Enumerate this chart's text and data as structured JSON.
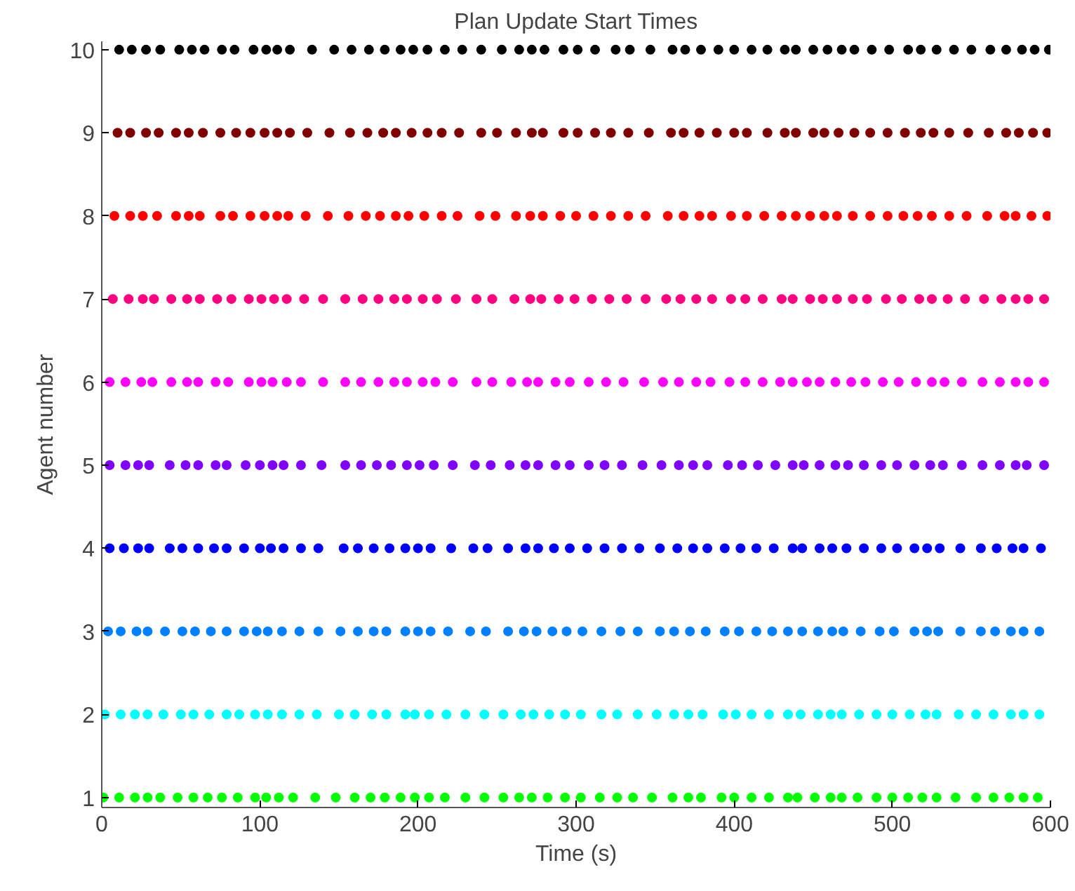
{
  "chart_data": {
    "type": "scatter",
    "title": "Plan Update Start Times",
    "xlabel": "Time (s)",
    "ylabel": "Agent number",
    "xlim": [
      0,
      600
    ],
    "ylim": [
      0.88,
      10.1
    ],
    "xticks": [
      0,
      100,
      200,
      300,
      400,
      500,
      600
    ],
    "yticks": [
      1,
      2,
      3,
      4,
      5,
      6,
      7,
      8,
      9,
      10
    ],
    "grid": false,
    "marker": "circle",
    "series": [
      {
        "color": "#00ff00",
        "x": [
          1,
          11,
          21,
          29,
          37,
          48,
          58,
          67,
          76,
          86,
          97,
          104,
          112,
          121,
          135,
          148,
          160,
          170,
          179,
          189,
          198,
          207,
          217,
          230,
          242,
          254,
          264,
          272,
          282,
          293,
          303,
          315,
          326,
          336,
          348,
          361,
          371,
          379,
          392,
          400,
          411,
          422,
          434,
          440,
          451,
          461,
          468,
          478,
          490,
          500,
          510,
          519,
          528,
          540,
          553,
          564,
          574,
          583,
          592
        ],
        "values": [
          1,
          1,
          1,
          1,
          1,
          1,
          1,
          1,
          1,
          1,
          1,
          1,
          1,
          1,
          1,
          1,
          1,
          1,
          1,
          1,
          1,
          1,
          1,
          1,
          1,
          1,
          1,
          1,
          1,
          1,
          1,
          1,
          1,
          1,
          1,
          1,
          1,
          1,
          1,
          1,
          1,
          1,
          1,
          1,
          1,
          1,
          1,
          1,
          1,
          1,
          1,
          1,
          1,
          1,
          1,
          1,
          1,
          1,
          1
        ]
      },
      {
        "color": "#00ffff",
        "x": [
          2,
          12,
          21,
          29,
          39,
          50,
          58,
          68,
          79,
          87,
          97,
          105,
          114,
          125,
          136,
          150,
          160,
          171,
          180,
          192,
          198,
          207,
          218,
          230,
          242,
          254,
          265,
          273,
          283,
          293,
          303,
          316,
          326,
          339,
          351,
          362,
          371,
          380,
          393,
          401,
          411,
          422,
          434,
          442,
          453,
          461,
          468,
          479,
          490,
          500,
          511,
          521,
          528,
          542,
          553,
          564,
          575,
          583,
          593
        ],
        "values": [
          2,
          2,
          2,
          2,
          2,
          2,
          2,
          2,
          2,
          2,
          2,
          2,
          2,
          2,
          2,
          2,
          2,
          2,
          2,
          2,
          2,
          2,
          2,
          2,
          2,
          2,
          2,
          2,
          2,
          2,
          2,
          2,
          2,
          2,
          2,
          2,
          2,
          2,
          2,
          2,
          2,
          2,
          2,
          2,
          2,
          2,
          2,
          2,
          2,
          2,
          2,
          2,
          2,
          2,
          2,
          2,
          2,
          2,
          2
        ]
      },
      {
        "color": "#0080ff",
        "x": [
          4,
          12,
          22,
          29,
          40,
          51,
          59,
          69,
          79,
          90,
          98,
          105,
          114,
          125,
          137,
          151,
          162,
          172,
          180,
          192,
          200,
          208,
          219,
          233,
          243,
          257,
          267,
          275,
          285,
          294,
          304,
          316,
          328,
          339,
          353,
          362,
          372,
          382,
          394,
          403,
          414,
          424,
          434,
          443,
          453,
          462,
          469,
          480,
          492,
          501,
          514,
          522,
          529,
          543,
          556,
          565,
          575,
          583,
          593
        ],
        "values": [
          3,
          3,
          3,
          3,
          3,
          3,
          3,
          3,
          3,
          3,
          3,
          3,
          3,
          3,
          3,
          3,
          3,
          3,
          3,
          3,
          3,
          3,
          3,
          3,
          3,
          3,
          3,
          3,
          3,
          3,
          3,
          3,
          3,
          3,
          3,
          3,
          3,
          3,
          3,
          3,
          3,
          3,
          3,
          3,
          3,
          3,
          3,
          3,
          3,
          3,
          3,
          3,
          3,
          3,
          3,
          3,
          3,
          3,
          3
        ]
      },
      {
        "color": "#0000ff",
        "x": [
          5,
          14,
          23,
          30,
          43,
          51,
          61,
          71,
          79,
          90,
          100,
          107,
          115,
          126,
          137,
          153,
          162,
          172,
          182,
          192,
          200,
          208,
          221,
          235,
          244,
          257,
          268,
          276,
          286,
          296,
          307,
          318,
          329,
          340,
          353,
          364,
          374,
          383,
          394,
          404,
          414,
          425,
          437,
          443,
          454,
          462,
          471,
          482,
          493,
          503,
          514,
          522,
          530,
          543,
          556,
          566,
          576,
          583,
          594
        ],
        "values": [
          4,
          4,
          4,
          4,
          4,
          4,
          4,
          4,
          4,
          4,
          4,
          4,
          4,
          4,
          4,
          4,
          4,
          4,
          4,
          4,
          4,
          4,
          4,
          4,
          4,
          4,
          4,
          4,
          4,
          4,
          4,
          4,
          4,
          4,
          4,
          4,
          4,
          4,
          4,
          4,
          4,
          4,
          4,
          4,
          4,
          4,
          4,
          4,
          4,
          4,
          4,
          4,
          4,
          4,
          4,
          4,
          4,
          4,
          4
        ]
      },
      {
        "color": "#8000ff",
        "x": [
          5,
          15,
          23,
          30,
          43,
          53,
          61,
          72,
          79,
          91,
          100,
          108,
          115,
          126,
          139,
          154,
          164,
          174,
          183,
          193,
          201,
          210,
          222,
          236,
          246,
          258,
          268,
          276,
          287,
          296,
          308,
          318,
          329,
          342,
          354,
          365,
          374,
          383,
          396,
          405,
          415,
          426,
          437,
          444,
          454,
          464,
          472,
          482,
          493,
          503,
          514,
          524,
          532,
          544,
          557,
          568,
          578,
          585,
          596
        ],
        "values": [
          5,
          5,
          5,
          5,
          5,
          5,
          5,
          5,
          5,
          5,
          5,
          5,
          5,
          5,
          5,
          5,
          5,
          5,
          5,
          5,
          5,
          5,
          5,
          5,
          5,
          5,
          5,
          5,
          5,
          5,
          5,
          5,
          5,
          5,
          5,
          5,
          5,
          5,
          5,
          5,
          5,
          5,
          5,
          5,
          5,
          5,
          5,
          5,
          5,
          5,
          5,
          5,
          5,
          5,
          5,
          5,
          5,
          5,
          5
        ]
      },
      {
        "color": "#ff00ff",
        "x": [
          5,
          15,
          25,
          32,
          44,
          54,
          61,
          72,
          80,
          93,
          101,
          108,
          117,
          126,
          140,
          154,
          164,
          175,
          185,
          193,
          203,
          211,
          222,
          237,
          247,
          259,
          269,
          276,
          287,
          296,
          308,
          319,
          330,
          343,
          355,
          365,
          376,
          385,
          397,
          407,
          418,
          429,
          437,
          446,
          454,
          464,
          474,
          483,
          494,
          504,
          515,
          525,
          533,
          544,
          557,
          568,
          578,
          586,
          596
        ],
        "values": [
          6,
          6,
          6,
          6,
          6,
          6,
          6,
          6,
          6,
          6,
          6,
          6,
          6,
          6,
          6,
          6,
          6,
          6,
          6,
          6,
          6,
          6,
          6,
          6,
          6,
          6,
          6,
          6,
          6,
          6,
          6,
          6,
          6,
          6,
          6,
          6,
          6,
          6,
          6,
          6,
          6,
          6,
          6,
          6,
          6,
          6,
          6,
          6,
          6,
          6,
          6,
          6,
          6,
          6,
          6,
          6,
          6,
          6,
          6
        ]
      },
      {
        "color": "#ff0080",
        "x": [
          7,
          17,
          26,
          33,
          44,
          54,
          62,
          73,
          82,
          93,
          101,
          109,
          117,
          128,
          140,
          154,
          165,
          175,
          185,
          193,
          203,
          212,
          224,
          237,
          247,
          261,
          271,
          278,
          289,
          299,
          310,
          321,
          332,
          344,
          357,
          366,
          376,
          386,
          398,
          407,
          418,
          430,
          437,
          448,
          456,
          465,
          475,
          484,
          496,
          506,
          517,
          525,
          535,
          546,
          558,
          569,
          578,
          586,
          596
        ],
        "values": [
          7,
          7,
          7,
          7,
          7,
          7,
          7,
          7,
          7,
          7,
          7,
          7,
          7,
          7,
          7,
          7,
          7,
          7,
          7,
          7,
          7,
          7,
          7,
          7,
          7,
          7,
          7,
          7,
          7,
          7,
          7,
          7,
          7,
          7,
          7,
          7,
          7,
          7,
          7,
          7,
          7,
          7,
          7,
          7,
          7,
          7,
          7,
          7,
          7,
          7,
          7,
          7,
          7,
          7,
          7,
          7,
          7,
          7,
          7
        ]
      },
      {
        "color": "#ff0000",
        "x": [
          8,
          18,
          26,
          35,
          47,
          55,
          62,
          75,
          83,
          94,
          103,
          111,
          118,
          129,
          143,
          156,
          167,
          176,
          186,
          194,
          204,
          215,
          225,
          239,
          249,
          262,
          271,
          279,
          290,
          300,
          311,
          322,
          333,
          344,
          358,
          368,
          378,
          386,
          398,
          408,
          419,
          430,
          439,
          448,
          457,
          465,
          475,
          486,
          497,
          507,
          516,
          525,
          536,
          547,
          560,
          571,
          578,
          588,
          598
        ],
        "values": [
          8,
          8,
          8,
          8,
          8,
          8,
          8,
          8,
          8,
          8,
          8,
          8,
          8,
          8,
          8,
          8,
          8,
          8,
          8,
          8,
          8,
          8,
          8,
          8,
          8,
          8,
          8,
          8,
          8,
          8,
          8,
          8,
          8,
          8,
          8,
          8,
          8,
          8,
          8,
          8,
          8,
          8,
          8,
          8,
          8,
          8,
          8,
          8,
          8,
          8,
          8,
          8,
          8,
          8,
          8,
          8,
          8,
          8,
          8
        ]
      },
      {
        "color": "#800000",
        "x": [
          10,
          18,
          28,
          36,
          47,
          55,
          64,
          75,
          85,
          94,
          103,
          111,
          119,
          130,
          144,
          157,
          168,
          178,
          186,
          196,
          206,
          215,
          226,
          240,
          250,
          262,
          272,
          279,
          292,
          301,
          312,
          322,
          333,
          346,
          360,
          368,
          378,
          389,
          400,
          408,
          421,
          432,
          439,
          450,
          457,
          466,
          476,
          486,
          497,
          508,
          518,
          526,
          536,
          548,
          561,
          572,
          580,
          589,
          598
        ],
        "values": [
          9,
          9,
          9,
          9,
          9,
          9,
          9,
          9,
          9,
          9,
          9,
          9,
          9,
          9,
          9,
          9,
          9,
          9,
          9,
          9,
          9,
          9,
          9,
          9,
          9,
          9,
          9,
          9,
          9,
          9,
          9,
          9,
          9,
          9,
          9,
          9,
          9,
          9,
          9,
          9,
          9,
          9,
          9,
          9,
          9,
          9,
          9,
          9,
          9,
          9,
          9,
          9,
          9,
          9,
          9,
          9,
          9,
          9,
          9
        ]
      },
      {
        "color": "#000000",
        "x": [
          11,
          19,
          28,
          37,
          49,
          57,
          65,
          76,
          84,
          96,
          104,
          111,
          119,
          133,
          147,
          158,
          169,
          179,
          189,
          197,
          206,
          217,
          228,
          240,
          253,
          264,
          272,
          280,
          292,
          301,
          312,
          325,
          334,
          347,
          361,
          369,
          379,
          390,
          400,
          411,
          421,
          432,
          439,
          450,
          459,
          468,
          476,
          487,
          498,
          510,
          518,
          528,
          539,
          550,
          562,
          572,
          582,
          590,
          599
        ],
        "values": [
          10,
          10,
          10,
          10,
          10,
          10,
          10,
          10,
          10,
          10,
          10,
          10,
          10,
          10,
          10,
          10,
          10,
          10,
          10,
          10,
          10,
          10,
          10,
          10,
          10,
          10,
          10,
          10,
          10,
          10,
          10,
          10,
          10,
          10,
          10,
          10,
          10,
          10,
          10,
          10,
          10,
          10,
          10,
          10,
          10,
          10,
          10,
          10,
          10,
          10,
          10,
          10,
          10,
          10,
          10,
          10,
          10,
          10,
          10
        ]
      }
    ]
  }
}
